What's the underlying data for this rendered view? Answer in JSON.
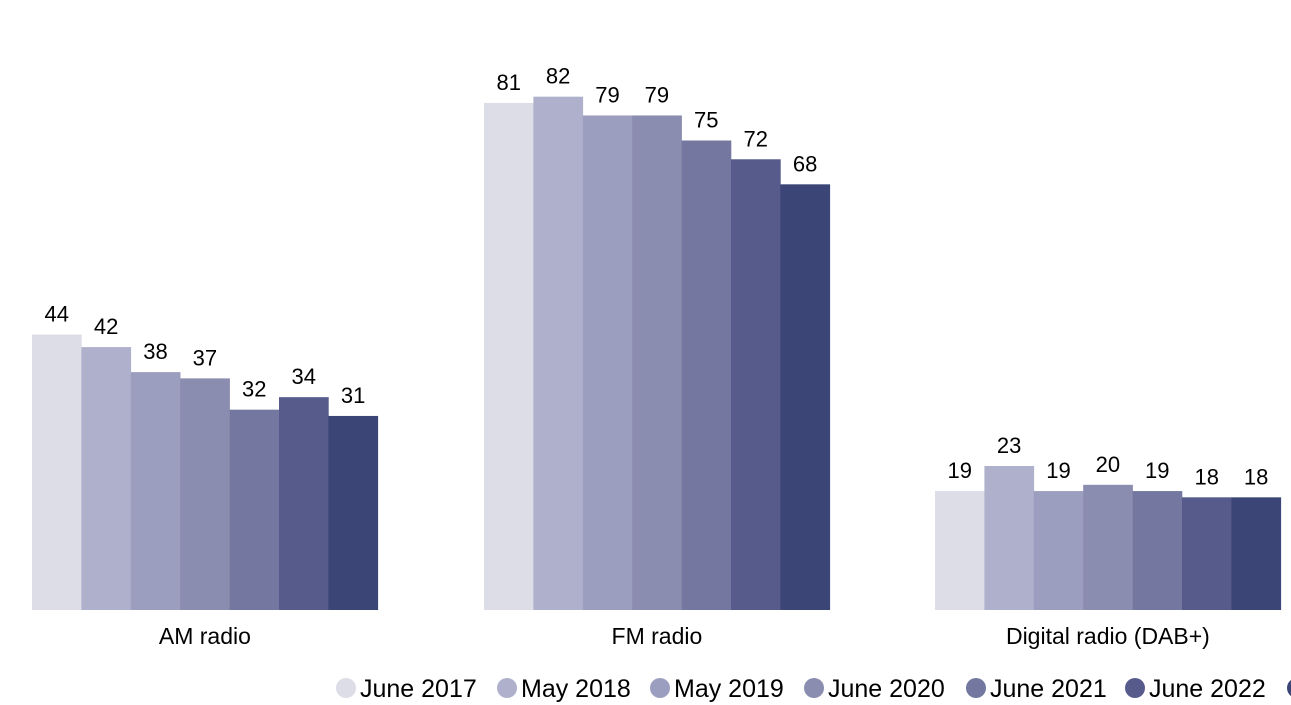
{
  "chart_data": {
    "type": "bar",
    "categories": [
      "AM radio",
      "FM radio",
      "Digital radio (DAB+)"
    ],
    "series": [
      {
        "name": "June 2017",
        "color": "#dddde8",
        "values": [
          44,
          81,
          19
        ]
      },
      {
        "name": "May 2018",
        "color": "#afb0cc",
        "values": [
          42,
          82,
          23
        ]
      },
      {
        "name": "May 2019",
        "color": "#9c9ebf",
        "values": [
          38,
          79,
          19
        ]
      },
      {
        "name": "June 2020",
        "color": "#8a8cb0",
        "values": [
          37,
          79,
          20
        ]
      },
      {
        "name": "June 2021",
        "color": "#74779f",
        "values": [
          32,
          75,
          19
        ]
      },
      {
        "name": "June 2022",
        "color": "#565b8b",
        "values": [
          34,
          72,
          18
        ]
      },
      {
        "name": "",
        "color": "#3b4677",
        "values": [
          31,
          68,
          18
        ]
      }
    ],
    "title": "",
    "xlabel": "",
    "ylabel": "",
    "ylim": [
      0,
      90
    ],
    "grid": false,
    "data_labels": true,
    "legend_position": "bottom"
  }
}
